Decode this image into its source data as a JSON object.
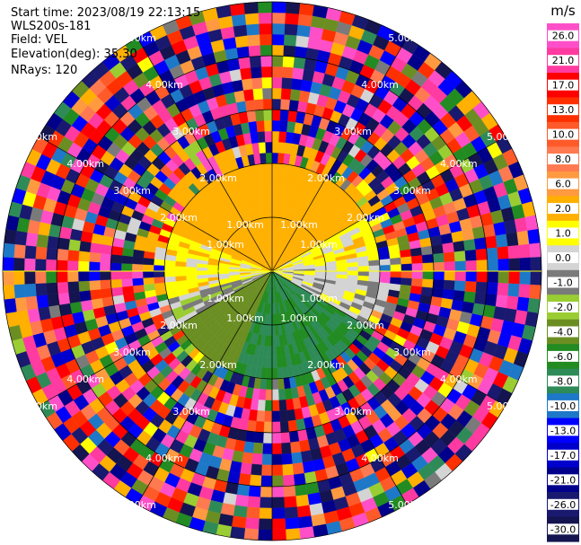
{
  "header": {
    "start_time": "Start time: 2023/08/19 22:13:15",
    "instrument": "WLS200s-181",
    "field": "Field: VEL",
    "elevation": "Elevation(deg): 35.30",
    "nrays": "NRays: 120"
  },
  "chart_data": {
    "type": "heatmap",
    "projection": "polar-ppi",
    "title": "",
    "nrays": 120,
    "range_rings_km": [
      1.0,
      2.0,
      3.0,
      4.0,
      5.0
    ],
    "range_ring_labels": [
      "1.00km",
      "2.00km",
      "3.00km",
      "4.00km",
      "5.00km"
    ],
    "max_range_km": 5.0,
    "spokes_deg": [
      0,
      30,
      60,
      90,
      120,
      150,
      180,
      210,
      240,
      270,
      300,
      330
    ],
    "colorbar": {
      "unit": "m/s",
      "range": [
        -30.0,
        30.0
      ],
      "ticks": [
        "26.0",
        "21.0",
        "17.0",
        "13.0",
        "10.0",
        "8.0",
        "6.0",
        "2.0",
        "1.0",
        "0.0",
        "-1.0",
        "-2.0",
        "-4.0",
        "-6.0",
        "-8.0",
        "-10.0",
        "-13.0",
        "-17.0",
        "-21.0",
        "-26.0",
        "-30.0"
      ],
      "bins": [
        {
          "low": 26,
          "high": 30,
          "color": "#ff4fc8"
        },
        {
          "low": 21,
          "high": 26,
          "color": "#ff3aa0"
        },
        {
          "low": 17,
          "high": 21,
          "color": "#ff0000"
        },
        {
          "low": 13,
          "high": 17,
          "color": "#ff3000"
        },
        {
          "low": 10,
          "high": 13,
          "color": "#ff5a2a"
        },
        {
          "low": 8,
          "high": 10,
          "color": "#ff7a50"
        },
        {
          "low": 6,
          "high": 8,
          "color": "#ff9a40"
        },
        {
          "low": 2,
          "high": 6,
          "color": "#ffb000"
        },
        {
          "low": 1,
          "high": 2,
          "color": "#ffff00"
        },
        {
          "low": 0,
          "high": 1,
          "color": "#d4d4d4"
        },
        {
          "low": -1,
          "high": 0,
          "color": "#7a7a7a"
        },
        {
          "low": -2,
          "high": -1,
          "color": "#9acd32"
        },
        {
          "low": -4,
          "high": -2,
          "color": "#6b8e23"
        },
        {
          "low": -6,
          "high": -4,
          "color": "#228b22"
        },
        {
          "low": -8,
          "high": -6,
          "color": "#2e8b57"
        },
        {
          "low": -10,
          "high": -8,
          "color": "#1e78c8"
        },
        {
          "low": -13,
          "high": -10,
          "color": "#0000ff"
        },
        {
          "low": -17,
          "high": -13,
          "color": "#0000cd"
        },
        {
          "low": -21,
          "high": -17,
          "color": "#00008b"
        },
        {
          "low": -26,
          "high": -21,
          "color": "#191970"
        },
        {
          "low": -30,
          "high": -26,
          "color": "#141450"
        }
      ]
    },
    "near_field": {
      "range_km": 2.1,
      "sectors": [
        {
          "from_deg": 290,
          "to_deg": 360,
          "value": 4.0
        },
        {
          "from_deg": 0,
          "to_deg": 60,
          "value": 3.0
        },
        {
          "from_deg": 60,
          "to_deg": 80,
          "value": 1.5
        },
        {
          "from_deg": 80,
          "to_deg": 120,
          "value": 0.5
        },
        {
          "from_deg": 120,
          "to_deg": 200,
          "value": -6.0
        },
        {
          "from_deg": 200,
          "to_deg": 240,
          "value": -3.0
        },
        {
          "from_deg": 240,
          "to_deg": 255,
          "value": -0.5
        },
        {
          "from_deg": 255,
          "to_deg": 290,
          "value": 1.5
        }
      ]
    },
    "far_field": "noise"
  }
}
